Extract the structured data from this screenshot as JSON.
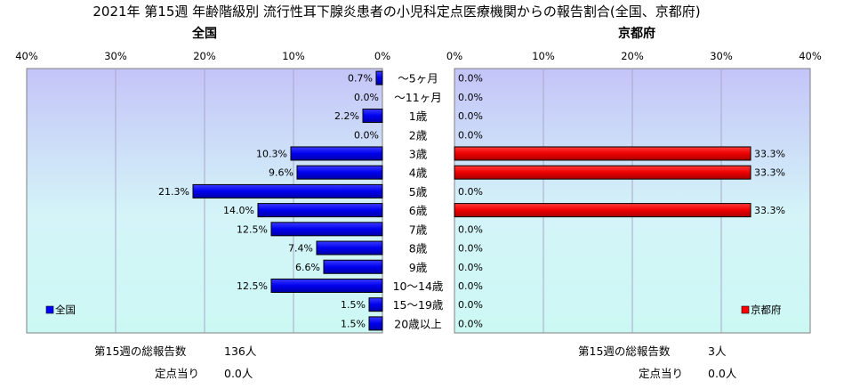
{
  "title": "2021年 第15週 年齢階級別 流行性耳下腺炎患者の小児科定点医療機関からの報告割合(全国、京都府)",
  "chart_data": {
    "type": "bar",
    "orientation": "horizontal-butterfly",
    "categories": [
      "～5ヶ月",
      "～11ヶ月",
      "1歳",
      "2歳",
      "3歳",
      "4歳",
      "5歳",
      "6歳",
      "7歳",
      "8歳",
      "9歳",
      "10～14歳",
      "15～19歳",
      "20歳以上"
    ],
    "panels": [
      {
        "key": "national",
        "heading": "全国",
        "legend": "全国",
        "color": "#0000ff",
        "direction": "left",
        "xlim": [
          0,
          40
        ],
        "ticks": [
          0,
          10,
          20,
          30,
          40
        ],
        "values": [
          0.7,
          0.0,
          2.2,
          0.0,
          10.3,
          9.6,
          21.3,
          14.0,
          12.5,
          7.4,
          6.6,
          12.5,
          1.5,
          1.5
        ],
        "labels": [
          "0.7%",
          "0.0%",
          "2.2%",
          "0.0%",
          "10.3%",
          "9.6%",
          "21.3%",
          "14.0%",
          "12.5%",
          "7.4%",
          "6.6%",
          "12.5%",
          "1.5%",
          "1.5%"
        ]
      },
      {
        "key": "kyoto",
        "heading": "京都府",
        "legend": "京都府",
        "color": "#ff0000",
        "direction": "right",
        "xlim": [
          0,
          40
        ],
        "ticks": [
          0,
          10,
          20,
          30,
          40
        ],
        "values": [
          0.0,
          0.0,
          0.0,
          0.0,
          33.3,
          33.3,
          0.0,
          33.3,
          0.0,
          0.0,
          0.0,
          0.0,
          0.0,
          0.0
        ],
        "labels": [
          "0.0%",
          "0.0%",
          "0.0%",
          "0.0%",
          "33.3%",
          "33.3%",
          "0.0%",
          "33.3%",
          "0.0%",
          "0.0%",
          "0.0%",
          "0.0%",
          "0.0%",
          "0.0%"
        ]
      }
    ],
    "tick_labels": [
      "0%",
      "10%",
      "20%",
      "30%",
      "40%"
    ],
    "grid": true
  },
  "footer": {
    "national": {
      "total_label": "第15週の総報告数",
      "total_value": "136人",
      "per_label": "定点当り",
      "per_value": "0.0人"
    },
    "kyoto": {
      "total_label": "第15週の総報告数",
      "total_value": "3人",
      "per_label": "定点当り",
      "per_value": "0.0人"
    }
  }
}
